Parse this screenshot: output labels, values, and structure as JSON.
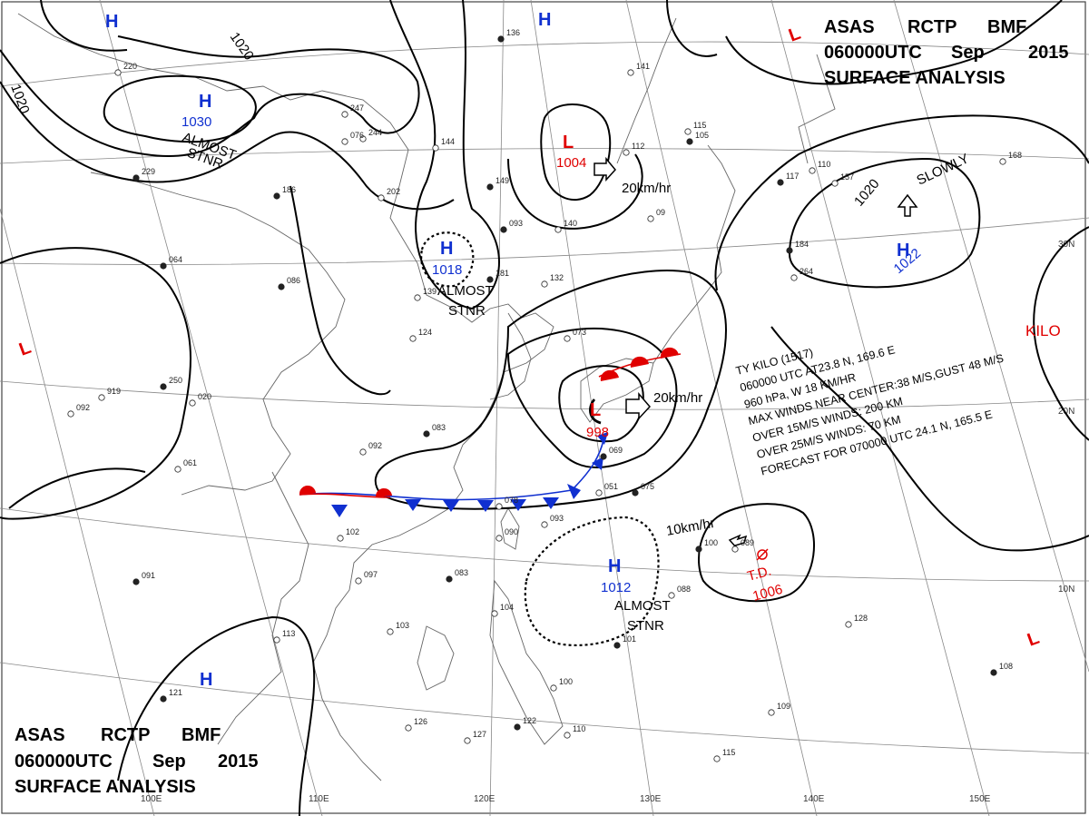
{
  "header_top": {
    "line1": [
      "ASAS",
      "RCTP",
      "BMF"
    ],
    "line2": [
      "060000UTC",
      "Sep",
      "2015"
    ],
    "line3": "SURFACE  ANALYSIS"
  },
  "header_bottom": {
    "line1": [
      "ASAS",
      "RCTP",
      "BMF"
    ],
    "line2": [
      "060000UTC",
      "Sep",
      "2015"
    ],
    "line3": "SURFACE  ANALYSIS"
  },
  "colors": {
    "high": "#1030d0",
    "low": "#e00000",
    "isobar": "#000000",
    "coast": "#666666",
    "grid": "#888888",
    "warm_front": "#e00000",
    "cold_front": "#1030d0"
  },
  "grid_labels": {
    "lon": [
      "100E",
      "110E",
      "120E",
      "130E",
      "140E",
      "150E"
    ],
    "lat": [
      "30N",
      "20N",
      "10N"
    ]
  },
  "isobar_labels": [
    "1020",
    "1020",
    "1020"
  ],
  "pressure_systems": [
    {
      "type": "H",
      "label": "H",
      "value": ""
    },
    {
      "type": "H",
      "label": "H",
      "value": ""
    },
    {
      "type": "H",
      "label": "H",
      "value": "1030"
    },
    {
      "type": "H",
      "label": "H",
      "value": "1018"
    },
    {
      "type": "H",
      "label": "H",
      "value": "1022"
    },
    {
      "type": "H",
      "label": "H",
      "value": "1012"
    },
    {
      "type": "H",
      "label": "H",
      "value": ""
    },
    {
      "type": "L",
      "label": "L",
      "value": "1004"
    },
    {
      "type": "L",
      "label": "L",
      "value": ""
    },
    {
      "type": "L",
      "label": "L",
      "value": ""
    },
    {
      "type": "L",
      "label": "L",
      "value": ""
    },
    {
      "type": "L",
      "label": "L",
      "value": "998"
    }
  ],
  "annotations": {
    "stnr1": [
      "ALMOST",
      "STNR"
    ],
    "stnr2": [
      "ALMOST",
      "STNR"
    ],
    "stnr3": [
      "ALMOST",
      "STNR"
    ],
    "slowly": "SLOWLY",
    "speed1": "20km/hr",
    "speed2": "20km/hr",
    "speed3": "10km/hr",
    "kilo": "KILO",
    "td": "T.D.",
    "td_value": "1006",
    "typhoon_info": [
      "TY KILO  (1517)",
      "060000 UTC  AT23.8 N, 169.6 E",
      "960 hPa, W  18 KM/HR",
      "MAX WINDS NEAR CENTER:38 M/S,GUST 48 M/S",
      "OVER 15M/S WINDS: 200 KM",
      "OVER 25M/S WINDS: 70 KM",
      "FORECAST FOR 070000 UTC 24.1 N, 165.5 E"
    ]
  },
  "station_reports": [
    "229",
    "247",
    "244",
    "186",
    "202",
    "144",
    "149",
    "140",
    "132",
    "181",
    "139",
    "124",
    "083",
    "092",
    "073",
    "069",
    "051",
    "078",
    "075",
    "090",
    "093",
    "083",
    "097",
    "102",
    "091",
    "103",
    "113",
    "121",
    "126",
    "127",
    "122",
    "110",
    "104",
    "101",
    "100",
    "109",
    "108",
    "115",
    "128",
    "100",
    "088",
    "089",
    "086",
    "092",
    "061",
    "064",
    "112",
    "09",
    "105",
    "141",
    "115",
    "117",
    "110",
    "157",
    "184",
    "264",
    "168",
    "136",
    "220",
    "919",
    "250",
    "020",
    "076",
    "093"
  ]
}
